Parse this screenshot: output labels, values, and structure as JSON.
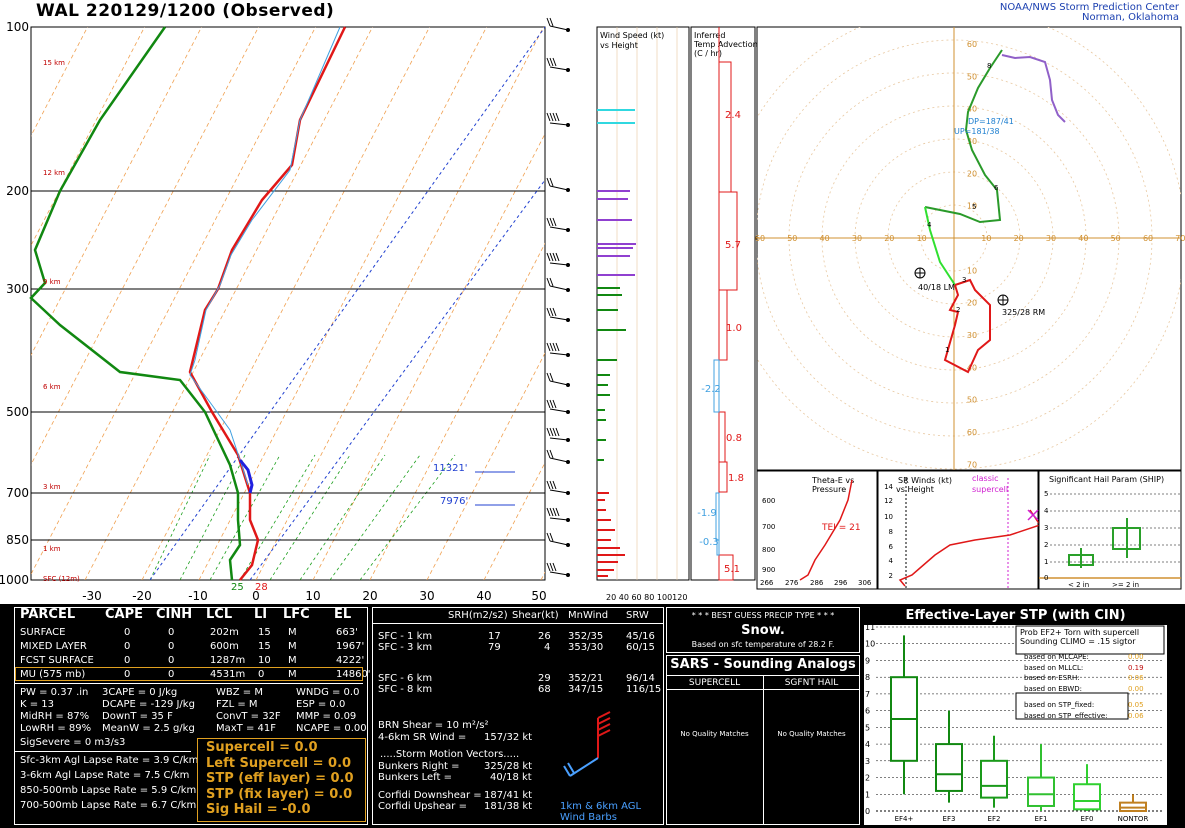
{
  "header": {
    "title": "WAL   220129/1200  (Observed)",
    "org_line1": "NOAA/NWS Storm Prediction Center",
    "org_line2": "Norman, Oklahoma"
  },
  "skewt": {
    "pressure_labels": [
      "100",
      "200",
      "300",
      "500",
      "700",
      "850",
      "1000"
    ],
    "height_labels": [
      "15 km",
      "12 km",
      "9 km",
      "6 km",
      "3 km",
      "1 km",
      "SFC (12m)"
    ],
    "temp_labels": [
      "-30",
      "-20",
      "-10",
      "0",
      "10",
      "20",
      "30",
      "40",
      "50"
    ],
    "sfc_td": "25",
    "sfc_t": "28",
    "marker1": "11321'",
    "marker2": "7976'"
  },
  "wind_panel": {
    "title1": "Wind Speed (kt)",
    "title2": "vs Height",
    "axis": "20 40 60 80 100120"
  },
  "advection": {
    "title1": "Inferred",
    "title2": "Temp Advection",
    "title3": "(C / hr)",
    "values": [
      "2.4",
      "5.7",
      "1.0",
      "-2.2",
      "0.8",
      "1.8",
      "-1.9",
      "-0.3",
      "5.1"
    ]
  },
  "hodograph": {
    "labels_x": [
      "60",
      "50",
      "40",
      "30",
      "20",
      "10",
      "0",
      "10",
      "20",
      "30",
      "40",
      "50",
      "60",
      "70"
    ],
    "labels_y": [
      "60",
      "50",
      "40",
      "30",
      "20",
      "10",
      "10",
      "20",
      "30",
      "40",
      "50",
      "60",
      "70"
    ],
    "dp": "DP=187/41",
    "up": "UP=181/38",
    "lm": "40/18 LM",
    "rm": "325/28 RM",
    "pts": [
      "1",
      "2",
      "3",
      "4",
      "5",
      "6",
      "8"
    ]
  },
  "theta_panel": {
    "title1": "Theta-E vs",
    "title2": "Pressure",
    "tei": "TEI = 21",
    "ylabels": [
      "600",
      "700",
      "800",
      "900"
    ],
    "xlabels": [
      "266",
      "276",
      "286",
      "296",
      "306"
    ]
  },
  "sr_panel": {
    "title1": "SR Winds (kt)",
    "title2": "vs Height",
    "classic": "classic",
    "supercell": "supercell",
    "ylabels": [
      "14",
      "12",
      "10",
      "8",
      "6",
      "4",
      "2"
    ]
  },
  "ship_panel": {
    "title": "Significant Hail Param (SHIP)",
    "ylabels": [
      "5",
      "4",
      "3",
      "2",
      "1",
      "0"
    ],
    "lt2": "< 2 in",
    "ge2": ">= 2 in"
  },
  "parcel": {
    "headers": [
      "PARCEL",
      "CAPE",
      "CINH",
      "LCL",
      "LI",
      "LFC",
      "EL"
    ],
    "rows": [
      [
        "SURFACE",
        "0",
        "0",
        "202m",
        "15",
        "M",
        "663'"
      ],
      [
        "MIXED LAYER",
        "0",
        "0",
        "600m",
        "15",
        "M",
        "1967'"
      ],
      [
        "FCST SURFACE",
        "0",
        "0",
        "1287m",
        "10",
        "M",
        "4222'"
      ],
      [
        "MU   (575 mb)",
        "0",
        "0",
        "4531m",
        "0",
        "M",
        "14860'"
      ]
    ],
    "indices": [
      [
        "PW = 0.37 .in",
        "3CAPE = 0 J/kg",
        "WBZ = M",
        "WNDG = 0.0"
      ],
      [
        "K = 13",
        "DCAPE = -129 J/kg",
        "FZL = M",
        "ESP = 0.0"
      ],
      [
        "MidRH = 87%",
        "DownT = 35 F",
        "ConvT = 32F",
        "MMP = 0.09"
      ],
      [
        "LowRH = 89%",
        "MeanW = 2.5 g/kg",
        "MaxT = 41F",
        "NCAPE = 0.00"
      ]
    ],
    "sigsevere": "SigSevere = 0 m3/s3",
    "lapse": [
      "Sfc-3km Agl Lapse Rate =  3.9 C/km",
      "3-6km Agl Lapse Rate =   7.5 C/km",
      "850-500mb Lapse Rate =  5.9 C/km",
      "700-500mb Lapse Rate =  6.7 C/km"
    ],
    "composite": [
      "Supercell = 0.0",
      "Left Supercell = 0.0",
      "STP (eff layer) = 0.0",
      "STP (fix layer) = 0.0",
      "Sig Hail = -0.0"
    ]
  },
  "kinematics": {
    "headers": [
      "SRH(m2/s2)",
      "Shear(kt)",
      "MnWind",
      "SRW"
    ],
    "rows": [
      [
        "SFC - 1 km",
        "17",
        "26",
        "352/35",
        "45/16"
      ],
      [
        "SFC - 3 km",
        "79",
        "4",
        "353/30",
        "60/15"
      ],
      [
        "SFC - 6 km",
        "29",
        "352/21",
        "96/14"
      ],
      [
        "SFC - 8 km",
        "68",
        "347/15",
        "116/15"
      ]
    ],
    "brn": "BRN Shear =  10 m²/s²",
    "srwind": "4-6km SR Wind =",
    "srwind_val": "157/32 kt",
    "smv": ".....Storm Motion Vectors.....",
    "motions": [
      [
        "Bunkers Right =",
        "325/28 kt"
      ],
      [
        "Bunkers Left =",
        "40/18 kt"
      ],
      [
        "Corfidi Downshear =",
        "187/41 kt"
      ],
      [
        "Corfidi Upshear =",
        "181/38 kt"
      ]
    ],
    "barb_label1": "1km & 6km AGL",
    "barb_label2": "Wind Barbs"
  },
  "precip": {
    "title": "* * * BEST GUESS PRECIP TYPE * * *",
    "type": "Snow.",
    "basis": "Based on sfc temperature of 28.2 F."
  },
  "sars": {
    "title": "SARS - Sounding Analogs",
    "col1": "SUPERCELL",
    "col2": "SGFNT HAIL",
    "nomatch": "No Quality Matches"
  },
  "stp": {
    "title": "Effective-Layer STP (with CIN)",
    "prob1": "Prob EF2+ Torn with supercell",
    "prob2": "Sounding CLIMO = .15 sigtor",
    "based": [
      [
        "based on MLCAPE:",
        "0.00"
      ],
      [
        "based on MLLCL:",
        "0.19"
      ],
      [
        "based on ESRH:",
        "0.06"
      ],
      [
        "based on EBWD:",
        "0.00"
      ],
      [
        "based on STP_fixed:",
        "0.05"
      ],
      [
        "based on STP_effective:",
        "0.06"
      ]
    ],
    "ylabels": [
      "11",
      "10",
      "9",
      "8",
      "7",
      "6",
      "5",
      "4",
      "3",
      "2",
      "1",
      "0"
    ],
    "categories": [
      "EF4+",
      "EF3",
      "EF2",
      "EF1",
      "EF0",
      "NONTOR"
    ]
  },
  "chart_data": {
    "type": "line",
    "title": "WAL 220129/1200 (Observed)",
    "xlabel": "",
    "ylabel": "",
    "temperature_profile_c": [
      [
        1000,
        -2
      ],
      [
        925,
        0
      ],
      [
        850,
        -1
      ],
      [
        775,
        -2
      ],
      [
        700,
        -4
      ],
      [
        600,
        -8
      ],
      [
        500,
        -15
      ],
      [
        400,
        -25
      ],
      [
        300,
        -40
      ],
      [
        250,
        -47
      ],
      [
        200,
        -52
      ],
      [
        150,
        -56
      ],
      [
        100,
        -62
      ]
    ],
    "dewpoint_profile_c": [
      [
        1000,
        -4
      ],
      [
        925,
        -6
      ],
      [
        850,
        -3
      ],
      [
        775,
        -5
      ],
      [
        700,
        -8
      ],
      [
        600,
        -12
      ],
      [
        500,
        -22
      ],
      [
        400,
        -40
      ],
      [
        300,
        -60
      ],
      [
        200,
        -72
      ],
      [
        100,
        -82
      ]
    ],
    "ylim": [
      1000,
      100
    ],
    "xlim": [
      -30,
      50
    ],
    "stp_boxes": [
      {
        "category": "EF4+",
        "min": 1,
        "q1": 3,
        "median": 5.5,
        "q3": 8,
        "max": 10.5
      },
      {
        "category": "EF3",
        "min": 0.5,
        "q1": 1.2,
        "median": 2.2,
        "q3": 4,
        "max": 6
      },
      {
        "category": "EF2",
        "min": 0.2,
        "q1": 0.8,
        "median": 1.5,
        "q3": 3,
        "max": 4.5
      },
      {
        "category": "EF1",
        "min": 0,
        "q1": 0.3,
        "median": 1,
        "q3": 2,
        "max": 4
      },
      {
        "category": "EF0",
        "min": 0,
        "q1": 0.1,
        "median": 0.6,
        "q3": 1.6,
        "max": 2.8
      },
      {
        "category": "NONTOR",
        "min": 0,
        "q1": 0,
        "median": 0.2,
        "q3": 0.5,
        "max": 1
      }
    ]
  }
}
